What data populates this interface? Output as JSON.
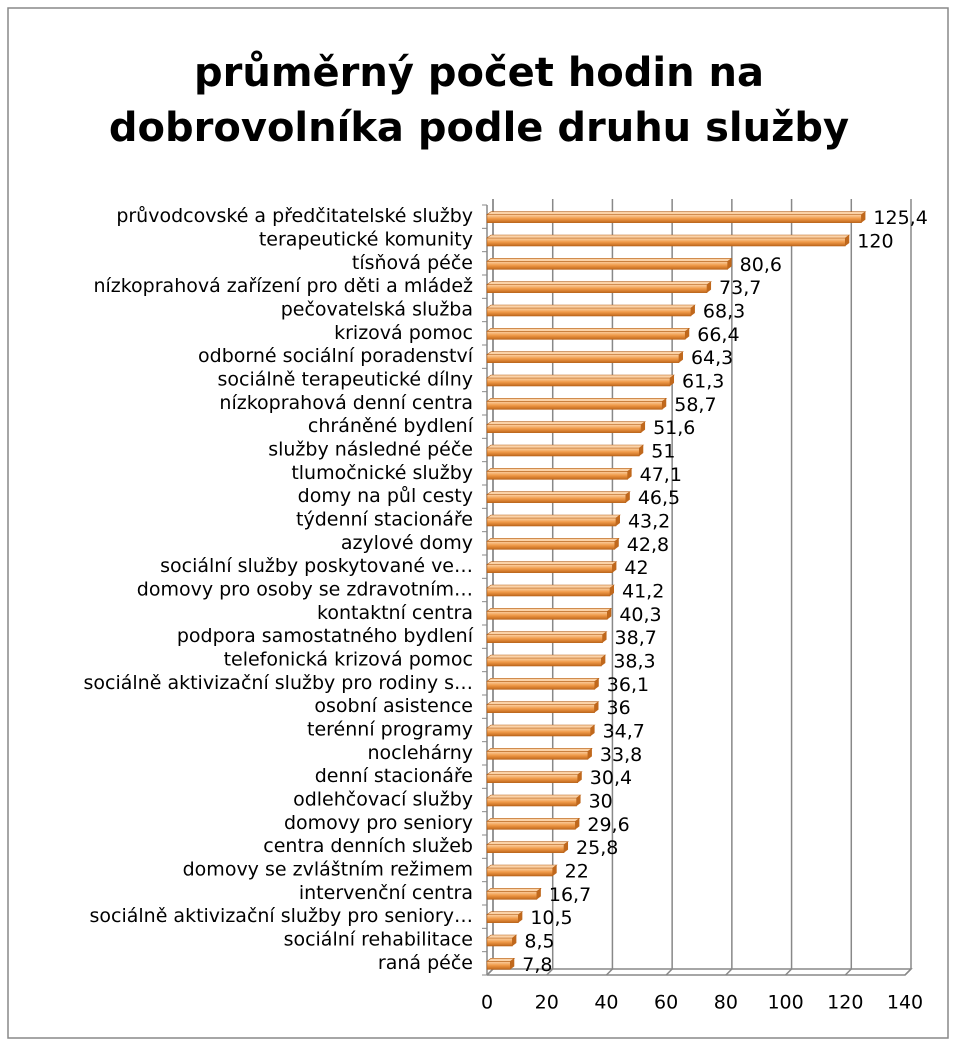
{
  "chart_data": {
    "type": "bar",
    "orientation": "horizontal",
    "title": "průměrný počet hodin na dobrovolníka podle druhu služby",
    "categories": [
      "průvodcovské a předčitatelské služby",
      "terapeutické komunity",
      "tísňová péče",
      "nízkoprahová zařízení pro děti a mládež",
      "pečovatelská služba",
      "krizová pomoc",
      "odborné sociální poradenství",
      "sociálně terapeutické dílny",
      "nízkoprahová denní centra",
      "chráněné bydlení",
      "služby následné péče",
      "tlumočnické služby",
      "domy na půl cesty",
      "týdenní stacionáře",
      "azylové domy",
      "sociální služby poskytované ve…",
      "domovy pro osoby se zdravotním…",
      "kontaktní centra",
      "podpora samostatného bydlení",
      "telefonická krizová pomoc",
      "sociálně aktivizační služby pro rodiny s…",
      "osobní asistence",
      "terénní programy",
      "noclehárny",
      "denní stacionáře",
      "odlehčovací služby",
      "domovy pro seniory",
      "centra denních služeb",
      "domovy se zvláštním režimem",
      "intervenční centra",
      "sociálně aktivizační služby pro seniory…",
      "sociální rehabilitace",
      "raná péče"
    ],
    "values": [
      125.4,
      120,
      80.6,
      73.7,
      68.3,
      66.4,
      64.3,
      61.3,
      58.7,
      51.6,
      51,
      47.1,
      46.5,
      43.2,
      42.8,
      42,
      41.2,
      40.3,
      38.7,
      38.3,
      36.1,
      36,
      34.7,
      33.8,
      30.4,
      30,
      29.6,
      25.8,
      22,
      16.7,
      10.5,
      8.5,
      7.8
    ],
    "value_labels": [
      "125,4",
      "120",
      "80,6",
      "73,7",
      "68,3",
      "66,4",
      "64,3",
      "61,3",
      "58,7",
      "51,6",
      "51",
      "47,1",
      "46,5",
      "43,2",
      "42,8",
      "42",
      "41,2",
      "40,3",
      "38,7",
      "38,3",
      "36,1",
      "36",
      "34,7",
      "33,8",
      "30,4",
      "30",
      "29,6",
      "25,8",
      "22",
      "16,7",
      "10,5",
      "8,5",
      "7,8"
    ],
    "color": "#f09a48",
    "xlim": [
      0,
      140
    ],
    "xticks": [
      0,
      20,
      40,
      60,
      80,
      100,
      120,
      140
    ],
    "grid": true
  }
}
